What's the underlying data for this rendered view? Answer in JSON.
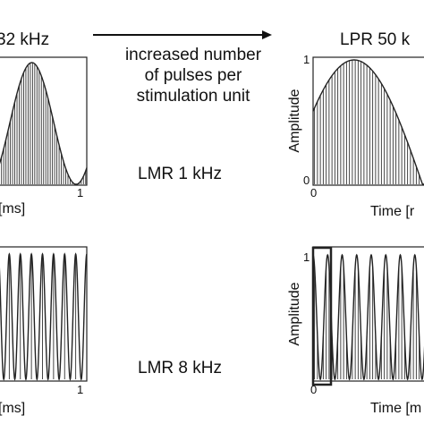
{
  "header": {
    "left_title": "32 kHz",
    "right_title": "LPR 50 k",
    "arrow_text_lines": [
      "increased number",
      "of pulses per",
      "stimulation unit"
    ]
  },
  "labels": {
    "lmr_1": "LMR 1 kHz",
    "lmr_8": "LMR 8 kHz"
  },
  "left_top": {
    "x_label": "[ms]",
    "x_tick_end": "1"
  },
  "right_top": {
    "y_label": "Amplitude",
    "y_tick_top": "1",
    "y_tick_bottom": "0",
    "x_tick_start": "0",
    "x_label": "Time [r"
  },
  "left_bottom": {
    "x_label": "[ms]",
    "x_tick_end": "1"
  },
  "right_bottom": {
    "y_label": "Amplitude",
    "y_tick_top": "1",
    "x_tick_start": "0",
    "x_label": "Time [m"
  },
  "chart_data": [
    {
      "type": "line",
      "panel": "left-top",
      "waveform": "cosine",
      "cycles": 1,
      "stick_count": 40,
      "xlim": [
        0,
        1
      ],
      "ylim": [
        0,
        1
      ],
      "x_ticks": [
        "1"
      ],
      "xlabel": "[ms]"
    },
    {
      "type": "line",
      "panel": "right-top",
      "waveform": "half-sine",
      "cycles": 0.5,
      "stick_count": 40,
      "xlim": [
        0,
        1
      ],
      "ylim": [
        0,
        1
      ],
      "x_ticks": [
        "0"
      ],
      "y_ticks": [
        "0",
        "1"
      ],
      "xlabel": "Time [r",
      "ylabel": "Amplitude"
    },
    {
      "type": "line",
      "panel": "left-bottom",
      "waveform": "cosine",
      "cycles": 8,
      "stick_count": 8,
      "xlim": [
        0,
        1
      ],
      "ylim": [
        0,
        1
      ],
      "x_ticks": [
        "1"
      ],
      "xlabel": "[ms]"
    },
    {
      "type": "line",
      "panel": "right-bottom",
      "waveform": "cosine",
      "cycles": 8,
      "stick_count": 40,
      "xlim": [
        0,
        1
      ],
      "ylim": [
        0,
        1
      ],
      "x_ticks": [
        "0"
      ],
      "y_ticks": [
        "1"
      ],
      "xlabel": "Time [m",
      "ylabel": "Amplitude"
    }
  ]
}
